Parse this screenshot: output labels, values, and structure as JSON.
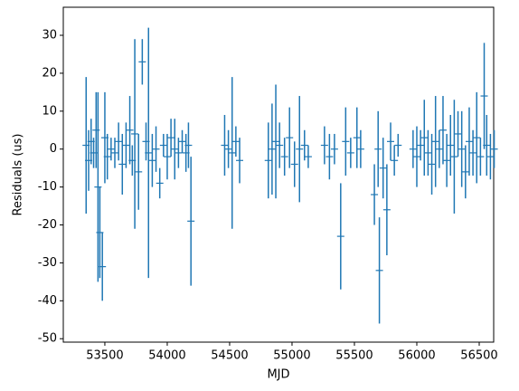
{
  "chart_data": {
    "type": "errorbar",
    "xlabel": "MJD",
    "ylabel": "Residuals (us)",
    "color": "#1f77b4",
    "x": [
      53350,
      53370,
      53390,
      53410,
      53430,
      53445,
      53460,
      53480,
      53500,
      53520,
      53550,
      53580,
      53610,
      53640,
      53670,
      53700,
      53720,
      53740,
      53770,
      53800,
      53830,
      53850,
      53880,
      53910,
      53940,
      53970,
      54000,
      54030,
      54060,
      54090,
      54120,
      54150,
      54170,
      54190,
      54460,
      54490,
      54520,
      54550,
      54580,
      54810,
      54840,
      54870,
      54900,
      54940,
      54980,
      55020,
      55060,
      55100,
      55130,
      55260,
      55300,
      55340,
      55390,
      55430,
      55470,
      55520,
      55550,
      55660,
      55690,
      55700,
      55730,
      55760,
      55790,
      55820,
      55850,
      55970,
      56000,
      56030,
      56060,
      56090,
      56120,
      56150,
      56180,
      56210,
      56240,
      56270,
      56300,
      56330,
      56360,
      56390,
      56420,
      56450,
      56480,
      56510,
      56540,
      56560,
      56590,
      56620
    ],
    "values": [
      1,
      -3,
      2,
      -1,
      5,
      -10,
      -22,
      -31,
      3,
      -2,
      0,
      -1,
      2,
      -4,
      1,
      5,
      -3,
      4,
      -6,
      23,
      2,
      -1,
      -3,
      0,
      -9,
      1,
      -2,
      3,
      0,
      -1,
      2,
      -1,
      1,
      -19,
      1,
      0,
      -1,
      2,
      -3,
      -3,
      0,
      2,
      1,
      -2,
      3,
      -4,
      0,
      1,
      -2,
      1,
      -2,
      0,
      -23,
      2,
      -1,
      3,
      0,
      -12,
      0,
      -32,
      -5,
      -16,
      2,
      -3,
      1,
      0,
      -2,
      1,
      3,
      -1,
      -4,
      2,
      0,
      5,
      -3,
      1,
      -2,
      4,
      0,
      -6,
      2,
      -1,
      3,
      -2,
      14,
      1,
      -2,
      0
    ],
    "errors": [
      18,
      8,
      6,
      4,
      10,
      25,
      12,
      9,
      12,
      6,
      3,
      4,
      5,
      8,
      6,
      9,
      4,
      25,
      10,
      6,
      5,
      33,
      7,
      6,
      4,
      3,
      6,
      5,
      8,
      4,
      3,
      5,
      6,
      17,
      8,
      5,
      20,
      4,
      6,
      10,
      12,
      15,
      6,
      5,
      8,
      6,
      14,
      4,
      3,
      5,
      6,
      4,
      14,
      9,
      4,
      8,
      5,
      8,
      10,
      14,
      8,
      12,
      5,
      4,
      3,
      5,
      8,
      4,
      10,
      6,
      8,
      12,
      5,
      9,
      7,
      8,
      15,
      6,
      10,
      7,
      9,
      6,
      12,
      5,
      14,
      8,
      6,
      5
    ],
    "xlim": [
      53167,
      56616
    ],
    "ylim": [
      -50.9,
      37.4
    ],
    "xticks": [
      53500,
      54000,
      54500,
      55000,
      55500,
      56000,
      56500
    ],
    "yticks": [
      -50,
      -40,
      -30,
      -20,
      -10,
      0,
      10,
      20,
      30
    ]
  }
}
